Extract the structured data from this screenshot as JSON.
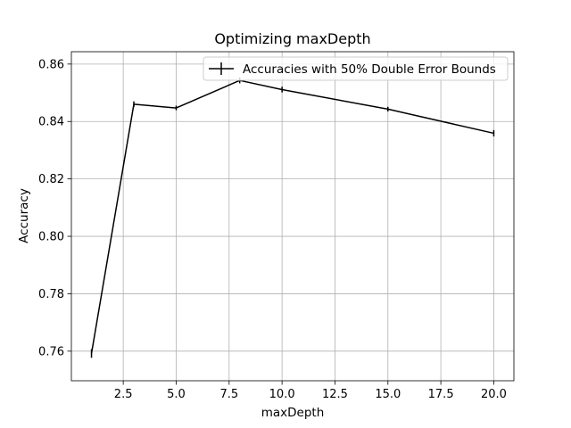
{
  "chart_data": {
    "type": "line",
    "title": "Optimizing maxDepth",
    "xlabel": "maxDepth",
    "ylabel": "Accuracy",
    "xlim": [
      0.05,
      20.95
    ],
    "ylim": [
      0.7497,
      0.8643
    ],
    "xticks": [
      2.5,
      5.0,
      7.5,
      10.0,
      12.5,
      15.0,
      17.5,
      20.0
    ],
    "xtick_labels": [
      "2.5",
      "5.0",
      "7.5",
      "10.0",
      "12.5",
      "15.0",
      "17.5",
      "20.0"
    ],
    "yticks": [
      0.76,
      0.78,
      0.8,
      0.82,
      0.84,
      0.86
    ],
    "ytick_labels": [
      "0.76",
      "0.78",
      "0.80",
      "0.82",
      "0.84",
      "0.86"
    ],
    "grid": true,
    "legend": {
      "position": "top-right"
    },
    "series": [
      {
        "name": "Accuracies with 50% Double Error Bounds",
        "color": "#000000",
        "x": [
          1,
          3,
          5,
          8,
          10,
          15,
          20
        ],
        "y": [
          0.7592,
          0.846,
          0.8447,
          0.8543,
          0.8511,
          0.8443,
          0.8359
        ],
        "err": [
          0.0015,
          0.001,
          0.0008,
          0.001,
          0.001,
          0.0008,
          0.0011
        ]
      }
    ]
  }
}
